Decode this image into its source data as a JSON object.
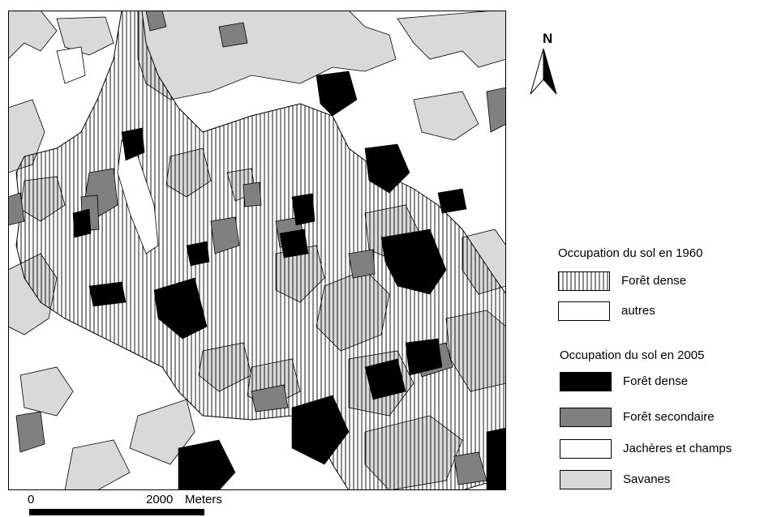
{
  "north": {
    "letter": "N"
  },
  "legend": {
    "group1960": {
      "title": "Occupation du sol en 1960",
      "items": [
        {
          "label": "Forêt dense",
          "fill": "hatch"
        },
        {
          "label": "autres",
          "fill": "#ffffff"
        }
      ]
    },
    "group2005": {
      "title": "Occupation du sol en 2005",
      "items": [
        {
          "label": "Forêt dense",
          "fill": "#000000"
        },
        {
          "label": "Forêt secondaire",
          "fill": "#808080"
        },
        {
          "label": "Jachères et champs",
          "fill": "#ffffff"
        },
        {
          "label": "Savanes",
          "fill": "#d9d9d9"
        }
      ]
    }
  },
  "scale": {
    "start": "0",
    "end": "2000",
    "unit": "Meters"
  },
  "colors": {
    "dense_forest": "#000000",
    "secondary_forest": "#808080",
    "fallow_fields": "#ffffff",
    "savanna": "#d9d9d9",
    "hatch_line": "#000000"
  }
}
